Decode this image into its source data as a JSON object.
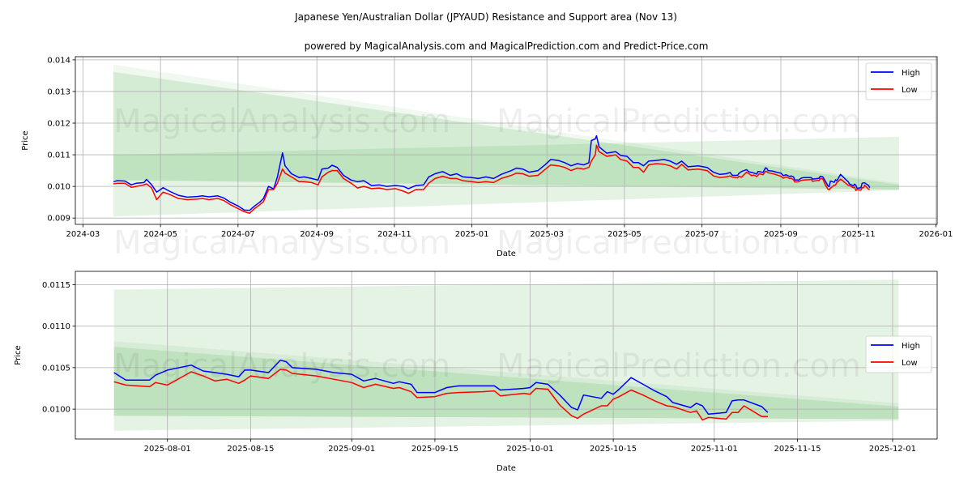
{
  "title": "Japanese Yen/Australian Dollar (JPYAUD) Resistance and Support area (Nov 13)",
  "subtitle": "powered by MagicalAnalysis.com and MagicalPrediction.com and Predict-Price.com",
  "watermarks": [
    "MagicalAnalysis.com",
    "MagicalPrediction.com"
  ],
  "colors": {
    "high": "#0000ff",
    "low": "#ff0000",
    "band": "#2ca02c",
    "grid": "#b0b0b0"
  },
  "series_data": {
    "dates": [
      "2024-03-25",
      "2024-03-28",
      "2024-04-03",
      "2024-04-08",
      "2024-04-12",
      "2024-04-18",
      "2024-04-20",
      "2024-04-24",
      "2024-04-28",
      "2024-05-03",
      "2024-05-08",
      "2024-05-15",
      "2024-05-22",
      "2024-05-30",
      "2024-06-03",
      "2024-06-08",
      "2024-06-15",
      "2024-06-20",
      "2024-06-25",
      "2024-07-01",
      "2024-07-06",
      "2024-07-10",
      "2024-07-14",
      "2024-07-18",
      "2024-07-21",
      "2024-07-25",
      "2024-07-29",
      "2024-08-01",
      "2024-08-05",
      "2024-08-07",
      "2024-08-12",
      "2024-08-18",
      "2024-08-22",
      "2024-08-28",
      "2024-09-02",
      "2024-09-05",
      "2024-09-10",
      "2024-09-13",
      "2024-09-17",
      "2024-09-22",
      "2024-09-28",
      "2024-10-03",
      "2024-10-08",
      "2024-10-14",
      "2024-10-20",
      "2024-10-26",
      "2024-11-02",
      "2024-11-08",
      "2024-11-12",
      "2024-11-18",
      "2024-11-24",
      "2024-11-28",
      "2024-12-03",
      "2024-12-09",
      "2024-12-15",
      "2024-12-20",
      "2024-12-25",
      "2025-01-01",
      "2025-01-06",
      "2025-01-12",
      "2025-01-18",
      "2025-01-24",
      "2025-02-01",
      "2025-02-05",
      "2025-02-10",
      "2025-02-15",
      "2025-02-22",
      "2025-02-28",
      "2025-03-04",
      "2025-03-10",
      "2025-03-15",
      "2025-03-20",
      "2025-03-25",
      "2025-03-30",
      "2025-04-03",
      "2025-04-05",
      "2025-04-08",
      "2025-04-09",
      "2025-04-11",
      "2025-04-17",
      "2025-04-24",
      "2025-04-28",
      "2025-05-03",
      "2025-05-08",
      "2025-05-12",
      "2025-05-16",
      "2025-05-20",
      "2025-05-26",
      "2025-06-01",
      "2025-06-06",
      "2025-06-11",
      "2025-06-15",
      "2025-06-20",
      "2025-06-28",
      "2025-07-05",
      "2025-07-10",
      "2025-07-15",
      "2025-07-20",
      "2025-07-23",
      "2025-07-25",
      "2025-07-29",
      "2025-07-30",
      "2025-08-01",
      "2025-08-05",
      "2025-08-07",
      "2025-08-09",
      "2025-08-11",
      "2025-08-13",
      "2025-08-14",
      "2025-08-15",
      "2025-08-18",
      "2025-08-20",
      "2025-08-21",
      "2025-08-22",
      "2025-08-26",
      "2025-08-29",
      "2025-09-01",
      "2025-09-03",
      "2025-09-05",
      "2025-09-08",
      "2025-09-09",
      "2025-09-11",
      "2025-09-12",
      "2025-09-15",
      "2025-09-17",
      "2025-09-19",
      "2025-09-23",
      "2025-09-25",
      "2025-09-26",
      "2025-09-30",
      "2025-10-01",
      "2025-10-02",
      "2025-10-04",
      "2025-10-06",
      "2025-10-08",
      "2025-10-09",
      "2025-10-10",
      "2025-10-13",
      "2025-10-14",
      "2025-10-15",
      "2025-10-16",
      "2025-10-18",
      "2025-10-20",
      "2025-10-22",
      "2025-10-24",
      "2025-10-25",
      "2025-10-28",
      "2025-10-29",
      "2025-10-30",
      "2025-10-31",
      "2025-11-03",
      "2025-11-04",
      "2025-11-05",
      "2025-11-06",
      "2025-11-09",
      "2025-11-10"
    ],
    "high": [
      0.01015,
      0.01018,
      0.01017,
      0.01005,
      0.0101,
      0.01012,
      0.01022,
      0.01005,
      0.00982,
      0.00996,
      0.00985,
      0.00972,
      0.00966,
      0.00968,
      0.0097,
      0.00967,
      0.0097,
      0.00963,
      0.0095,
      0.00938,
      0.00925,
      0.00924,
      0.00938,
      0.0095,
      0.00962,
      0.01,
      0.00992,
      0.0103,
      0.01106,
      0.01065,
      0.0104,
      0.01028,
      0.0103,
      0.01025,
      0.0102,
      0.01055,
      0.01058,
      0.01067,
      0.0106,
      0.01035,
      0.0102,
      0.01015,
      0.01018,
      0.01003,
      0.01005,
      0.01,
      0.01003,
      0.01,
      0.00993,
      0.01003,
      0.01005,
      0.0103,
      0.0104,
      0.01047,
      0.01035,
      0.0104,
      0.0103,
      0.01028,
      0.01025,
      0.0103,
      0.01025,
      0.01038,
      0.0105,
      0.01058,
      0.01055,
      0.01045,
      0.0105,
      0.0107,
      0.01085,
      0.01082,
      0.01075,
      0.01065,
      0.01072,
      0.01068,
      0.01075,
      0.01145,
      0.0115,
      0.0116,
      0.01125,
      0.01105,
      0.0111,
      0.01098,
      0.01095,
      0.01075,
      0.01075,
      0.01065,
      0.0108,
      0.01082,
      0.01085,
      0.0108,
      0.0107,
      0.0108,
      0.01062,
      0.01065,
      0.0106,
      0.01045,
      0.01038,
      0.0104,
      0.01044,
      0.01035,
      0.01035,
      0.01041,
      0.01047,
      0.01053,
      0.01046,
      0.01044,
      0.01042,
      0.01039,
      0.01047,
      0.01047,
      0.01044,
      0.01059,
      0.01057,
      0.0105,
      0.01048,
      0.01044,
      0.01042,
      0.01034,
      0.01037,
      0.01031,
      0.01033,
      0.0103,
      0.0102,
      0.0102,
      0.01026,
      0.01028,
      0.01028,
      0.01028,
      0.01023,
      0.01025,
      0.01026,
      0.01032,
      0.0103,
      0.01017,
      0.01002,
      0.00999,
      0.01017,
      0.01013,
      0.01021,
      0.01018,
      0.01024,
      0.01038,
      0.0103,
      0.01022,
      0.01015,
      0.01008,
      0.01002,
      0.01007,
      0.01004,
      0.00994,
      0.00996,
      0.0101,
      0.01011,
      0.01011,
      0.01003,
      0.00996
    ],
    "low": [
      0.01008,
      0.0101,
      0.0101,
      0.00997,
      0.01,
      0.01005,
      0.01008,
      0.00995,
      0.00958,
      0.00982,
      0.00975,
      0.00962,
      0.00958,
      0.0096,
      0.00962,
      0.00958,
      0.00962,
      0.00955,
      0.00942,
      0.0093,
      0.0092,
      0.00915,
      0.0093,
      0.00942,
      0.00952,
      0.0099,
      0.0099,
      0.0101,
      0.01055,
      0.01042,
      0.0103,
      0.01015,
      0.01015,
      0.01012,
      0.01005,
      0.0103,
      0.01045,
      0.0105,
      0.0105,
      0.01025,
      0.0101,
      0.00995,
      0.01,
      0.00993,
      0.00995,
      0.0099,
      0.00993,
      0.00985,
      0.00978,
      0.0099,
      0.0099,
      0.0101,
      0.01025,
      0.01032,
      0.01025,
      0.01025,
      0.01018,
      0.01015,
      0.01012,
      0.01015,
      0.01012,
      0.01025,
      0.01035,
      0.01042,
      0.0104,
      0.01032,
      0.01035,
      0.01055,
      0.01068,
      0.01065,
      0.0106,
      0.0105,
      0.01058,
      0.01055,
      0.0106,
      0.0108,
      0.011,
      0.0113,
      0.0111,
      0.01095,
      0.011,
      0.01085,
      0.0108,
      0.0106,
      0.0106,
      0.01045,
      0.01068,
      0.01072,
      0.0107,
      0.01065,
      0.01055,
      0.0107,
      0.01052,
      0.01055,
      0.0105,
      0.01033,
      0.01028,
      0.0103,
      0.01033,
      0.01029,
      0.01027,
      0.01032,
      0.01029,
      0.01045,
      0.0104,
      0.01034,
      0.01036,
      0.01031,
      0.01035,
      0.0104,
      0.01037,
      0.01048,
      0.01047,
      0.01043,
      0.0104,
      0.01036,
      0.01032,
      0.01026,
      0.0103,
      0.01025,
      0.01026,
      0.01021,
      0.01014,
      0.01015,
      0.01019,
      0.0102,
      0.01021,
      0.01022,
      0.01016,
      0.01019,
      0.01018,
      0.01025,
      0.01024,
      0.01005,
      0.00992,
      0.00989,
      0.00994,
      0.01004,
      0.01004,
      0.01012,
      0.01015,
      0.01023,
      0.01017,
      0.0101,
      0.01004,
      0.01003,
      0.00996,
      0.00998,
      0.00987,
      0.0099,
      0.00988,
      0.00996,
      0.00996,
      0.01004,
      0.00991,
      0.00991
    ]
  },
  "chart_data": [
    {
      "type": "line",
      "title": "Japanese Yen/Australian Dollar (JPYAUD) Resistance and Support area (Nov 13)",
      "xlabel": "Date",
      "ylabel": "Price",
      "xlim": [
        "2024-02-24",
        "2026-01-02"
      ],
      "ylim": [
        0.0088,
        0.0141
      ],
      "grid": true,
      "legend": {
        "placement": "top-right",
        "entries": [
          "High",
          "Low"
        ]
      },
      "data_start": "2024-03-25",
      "yticks": [
        0.009,
        0.01,
        0.011,
        0.012,
        0.013,
        0.014
      ],
      "ytick_labels": [
        "0.009",
        "0.010",
        "0.011",
        "0.012",
        "0.013",
        "0.014"
      ],
      "xticks": [
        "2024-03-01",
        "2024-05-01",
        "2024-07-01",
        "2024-09-01",
        "2024-11-01",
        "2025-01-01",
        "2025-03-01",
        "2025-05-01",
        "2025-07-01",
        "2025-09-01",
        "2025-11-01",
        "2026-01-01"
      ],
      "xtick_labels": [
        "2024-03",
        "2024-05",
        "2024-07",
        "2024-09",
        "2024-11",
        "2025-01",
        "2025-03",
        "2025-05",
        "2025-07",
        "2025-09",
        "2025-11",
        "2026-01"
      ],
      "bands": [
        {
          "name": "resistance-outer",
          "start": "2024-03-25",
          "end": "2025-12-03",
          "upper": [
            0.01385,
            0.0101
          ],
          "lower": [
            0.0102,
            0.0099
          ]
        },
        {
          "name": "resistance",
          "start": "2024-03-25",
          "end": "2025-12-03",
          "upper": [
            0.01362,
            0.01005
          ],
          "lower": [
            0.0102,
            0.0099
          ]
        },
        {
          "name": "support",
          "start": "2024-03-25",
          "end": "2025-12-03",
          "upper": [
            0.011,
            0.01157
          ],
          "lower": [
            0.00905,
            0.00988
          ]
        }
      ]
    },
    {
      "type": "line",
      "xlabel": "Date",
      "ylabel": "Price",
      "xlim": [
        "2025-07-16T12:00:00Z",
        "2025-12-08T12:00:00Z"
      ],
      "ylim": [
        0.00964,
        0.01166
      ],
      "grid": true,
      "legend": {
        "placement": "center-right",
        "entries": [
          "High",
          "Low"
        ]
      },
      "data_start": "2025-07-23",
      "yticks": [
        0.01,
        0.0105,
        0.011,
        0.0115
      ],
      "ytick_labels": [
        "0.0100",
        "0.0105",
        "0.0110",
        "0.0115"
      ],
      "xticks": [
        "2025-08-01",
        "2025-08-15",
        "2025-09-01",
        "2025-09-15",
        "2025-10-01",
        "2025-10-15",
        "2025-11-01",
        "2025-11-15",
        "2025-12-01"
      ],
      "xtick_labels": [
        "2025-08-01",
        "2025-08-15",
        "2025-09-01",
        "2025-09-15",
        "2025-10-01",
        "2025-10-15",
        "2025-11-01",
        "2025-11-15",
        "2025-12-01"
      ],
      "bands": [
        {
          "name": "support",
          "start": "2025-07-23",
          "end": "2025-12-02",
          "upper": [
            0.01144,
            0.01156
          ],
          "lower": [
            0.00974,
            0.00986
          ]
        },
        {
          "name": "resistance-outer",
          "start": "2025-07-23",
          "end": "2025-12-02",
          "upper": [
            0.01082,
            0.01007
          ],
          "lower": [
            0.00992,
            0.00988
          ]
        },
        {
          "name": "resistance",
          "start": "2025-07-23",
          "end": "2025-12-02",
          "upper": [
            0.01075,
            0.01003
          ],
          "lower": [
            0.00992,
            0.00988
          ]
        }
      ]
    }
  ]
}
